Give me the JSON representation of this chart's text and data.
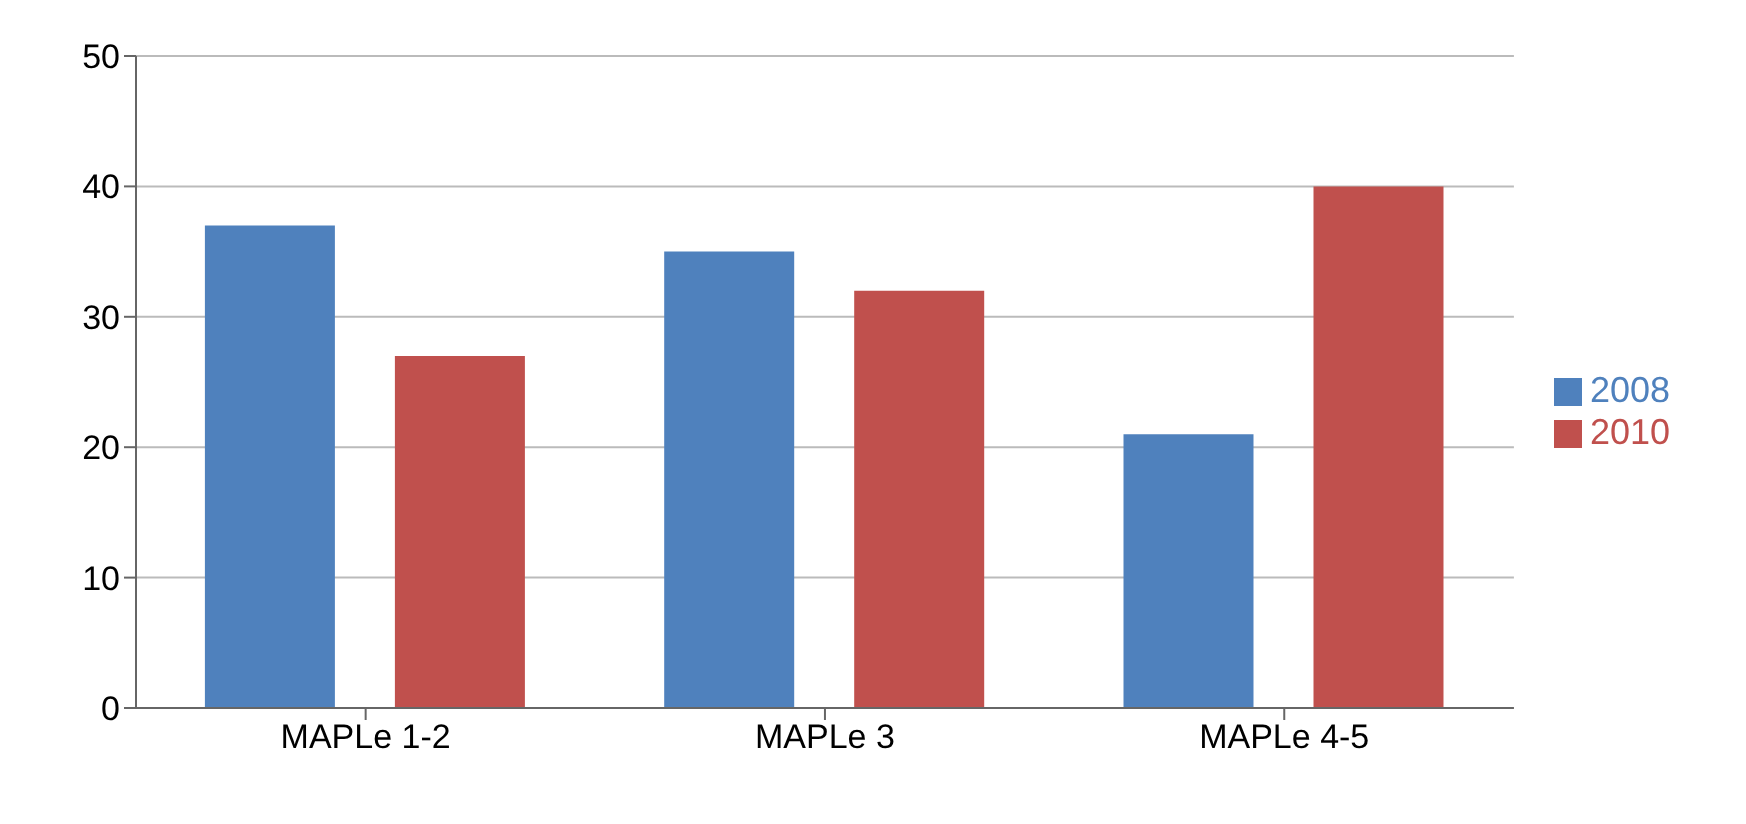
{
  "chart_data": {
    "type": "bar",
    "categories": [
      "MAPLe 1-2",
      "MAPLe 3",
      "MAPLe 4-5"
    ],
    "series": [
      {
        "name": "2008",
        "color": "#4f81bd",
        "values": [
          37,
          35,
          21
        ]
      },
      {
        "name": "2010",
        "color": "#c0504d",
        "values": [
          27,
          32,
          40
        ]
      }
    ],
    "ylim": [
      0,
      50
    ],
    "yticks": [
      0,
      10,
      20,
      30,
      40,
      50
    ],
    "grid": "y",
    "legend": "right"
  }
}
